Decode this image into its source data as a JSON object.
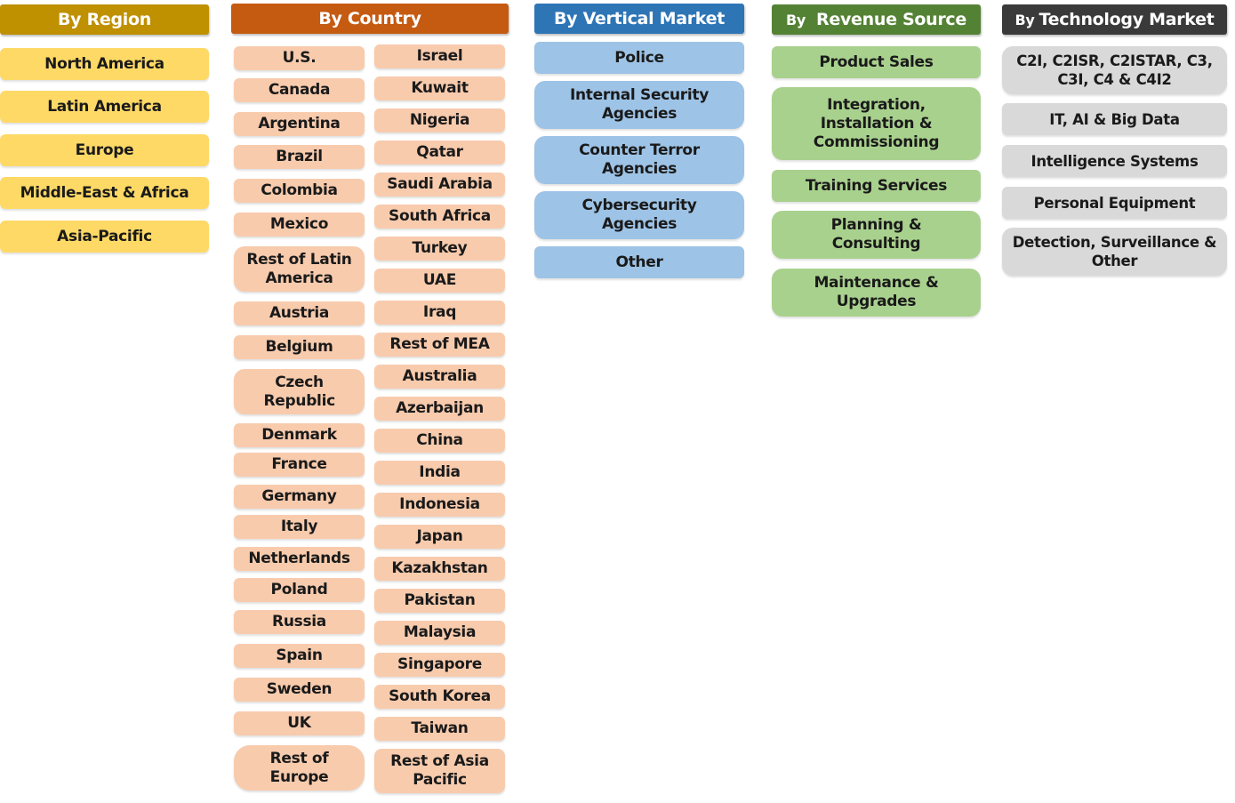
{
  "colors": {
    "region_header": "#bf9000",
    "region_item": "#fed966",
    "country_header": "#c55a11",
    "country_item": "#f8cbad",
    "vertical_header": "#2e75b6",
    "vertical_item": "#9dc3e6",
    "revenue_header": "#548235",
    "revenue_item": "#a9d18e",
    "tech_header": "#3a3a3a",
    "tech_item": "#d9d9d9"
  },
  "region": {
    "header": "By Region",
    "items": [
      "North America",
      "Latin America",
      "Europe",
      "Middle-East & Africa",
      "Asia-Pacific"
    ]
  },
  "country": {
    "header": "By Country",
    "col1": [
      "U.S.",
      "Canada",
      "Argentina",
      "Brazil",
      "Colombia",
      "Mexico",
      "Rest of Latin America",
      "Austria",
      "Belgium",
      "Czech Republic",
      "Denmark",
      "France",
      "Germany",
      "Italy",
      "Netherlands",
      "Poland",
      "Russia",
      "Spain",
      "Sweden",
      "UK",
      "Rest of Europe"
    ],
    "col2": [
      "Israel",
      "Kuwait",
      "Nigeria",
      "Qatar",
      "Saudi Arabia",
      "South Africa",
      "Turkey",
      "UAE",
      "Iraq",
      "Rest of MEA",
      "Australia",
      "Azerbaijan",
      "China",
      "India",
      "Indonesia",
      "Japan",
      "Kazakhstan",
      "Pakistan",
      "Malaysia",
      "Singapore",
      "South Korea",
      "Taiwan",
      "Rest of Asia Pacific"
    ]
  },
  "vertical": {
    "header": "By Vertical Market",
    "items": [
      "Police",
      "Internal Security Agencies",
      "Counter Terror Agencies",
      "Cybersecurity Agencies",
      "Other"
    ]
  },
  "revenue": {
    "header_prefix": "By",
    "header": "Revenue Source",
    "items": [
      "Product Sales",
      "Integration, Installation & Commissioning",
      "Training Services",
      "Planning & Consulting",
      "Maintenance & Upgrades"
    ]
  },
  "tech": {
    "header_prefix": "By",
    "header": "Technology Market",
    "items": [
      "C2I, C2ISR, C2ISTAR, C3, C3I, C4 & C4I2",
      "IT, AI & Big Data",
      "Intelligence Systems",
      "Personal Equipment",
      "Detection, Surveillance & Other"
    ]
  }
}
